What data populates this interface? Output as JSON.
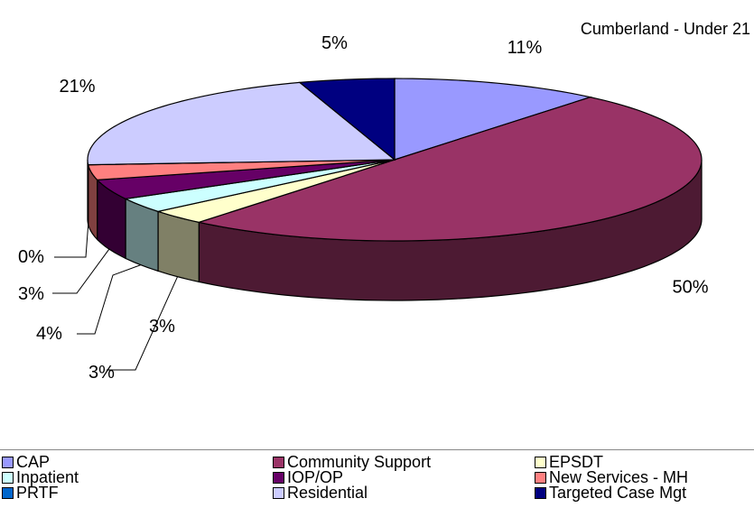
{
  "chart_data": {
    "type": "pie",
    "title": "Cumberland - Under 21",
    "slices": [
      {
        "label": "CAP",
        "value": 11,
        "display": "11%",
        "color": "#9999FF"
      },
      {
        "label": "Community Support",
        "value": 50,
        "display": "50%",
        "color": "#993366"
      },
      {
        "label": "EPSDT",
        "value": 3,
        "display": "3%",
        "color": "#FFFFCC"
      },
      {
        "label": "Inpatient",
        "value": 3,
        "display": "3%",
        "color": "#CCFFFF"
      },
      {
        "label": "IOP/OP",
        "value": 4,
        "display": "4%",
        "color": "#660066"
      },
      {
        "label": "New Services - MH",
        "value": 3,
        "display": "3%",
        "color": "#FF8080"
      },
      {
        "label": "PRTF",
        "value": 0,
        "display": "0%",
        "color": "#0066CC"
      },
      {
        "label": "Residential",
        "value": 21,
        "display": "21%",
        "color": "#CCCCFF"
      },
      {
        "label": "Targeted Case Mgt",
        "value": 5,
        "display": "5%",
        "color": "#000080"
      }
    ],
    "legend_position": "bottom"
  }
}
